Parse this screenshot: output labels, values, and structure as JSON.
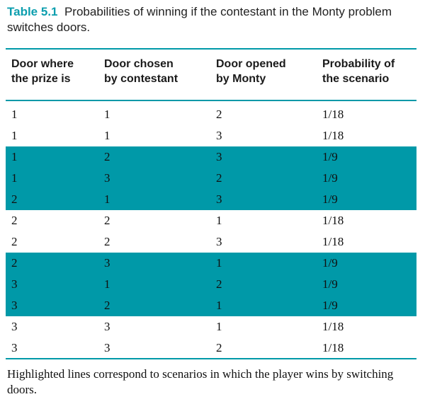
{
  "caption": {
    "label": "Table 5.1",
    "text": "Probabilities of winning if the contestant in the Monty problem switches doors."
  },
  "colors": {
    "accent_teal": "#0099a8",
    "title_teal": "#0c9eae"
  },
  "table": {
    "columns": [
      "Door where\nthe prize is",
      "Door chosen\nby contestant",
      "Door opened\nby Monty",
      "Probability of\nthe scenario"
    ],
    "rows": [
      {
        "cells": [
          "1",
          "1",
          "2",
          "1/18"
        ],
        "highlighted": false
      },
      {
        "cells": [
          "1",
          "1",
          "3",
          "1/18"
        ],
        "highlighted": false
      },
      {
        "cells": [
          "1",
          "2",
          "3",
          "1/9"
        ],
        "highlighted": true
      },
      {
        "cells": [
          "1",
          "3",
          "2",
          "1/9"
        ],
        "highlighted": true
      },
      {
        "cells": [
          "2",
          "1",
          "3",
          "1/9"
        ],
        "highlighted": true
      },
      {
        "cells": [
          "2",
          "2",
          "1",
          "1/18"
        ],
        "highlighted": false
      },
      {
        "cells": [
          "2",
          "2",
          "3",
          "1/18"
        ],
        "highlighted": false
      },
      {
        "cells": [
          "2",
          "3",
          "1",
          "1/9"
        ],
        "highlighted": true
      },
      {
        "cells": [
          "3",
          "1",
          "2",
          "1/9"
        ],
        "highlighted": true
      },
      {
        "cells": [
          "3",
          "2",
          "1",
          "1/9"
        ],
        "highlighted": true
      },
      {
        "cells": [
          "3",
          "3",
          "1",
          "1/18"
        ],
        "highlighted": false
      },
      {
        "cells": [
          "3",
          "3",
          "2",
          "1/18"
        ],
        "highlighted": false
      }
    ]
  },
  "footnote": "Highlighted lines correspond to scenarios in which the player wins by switching doors."
}
